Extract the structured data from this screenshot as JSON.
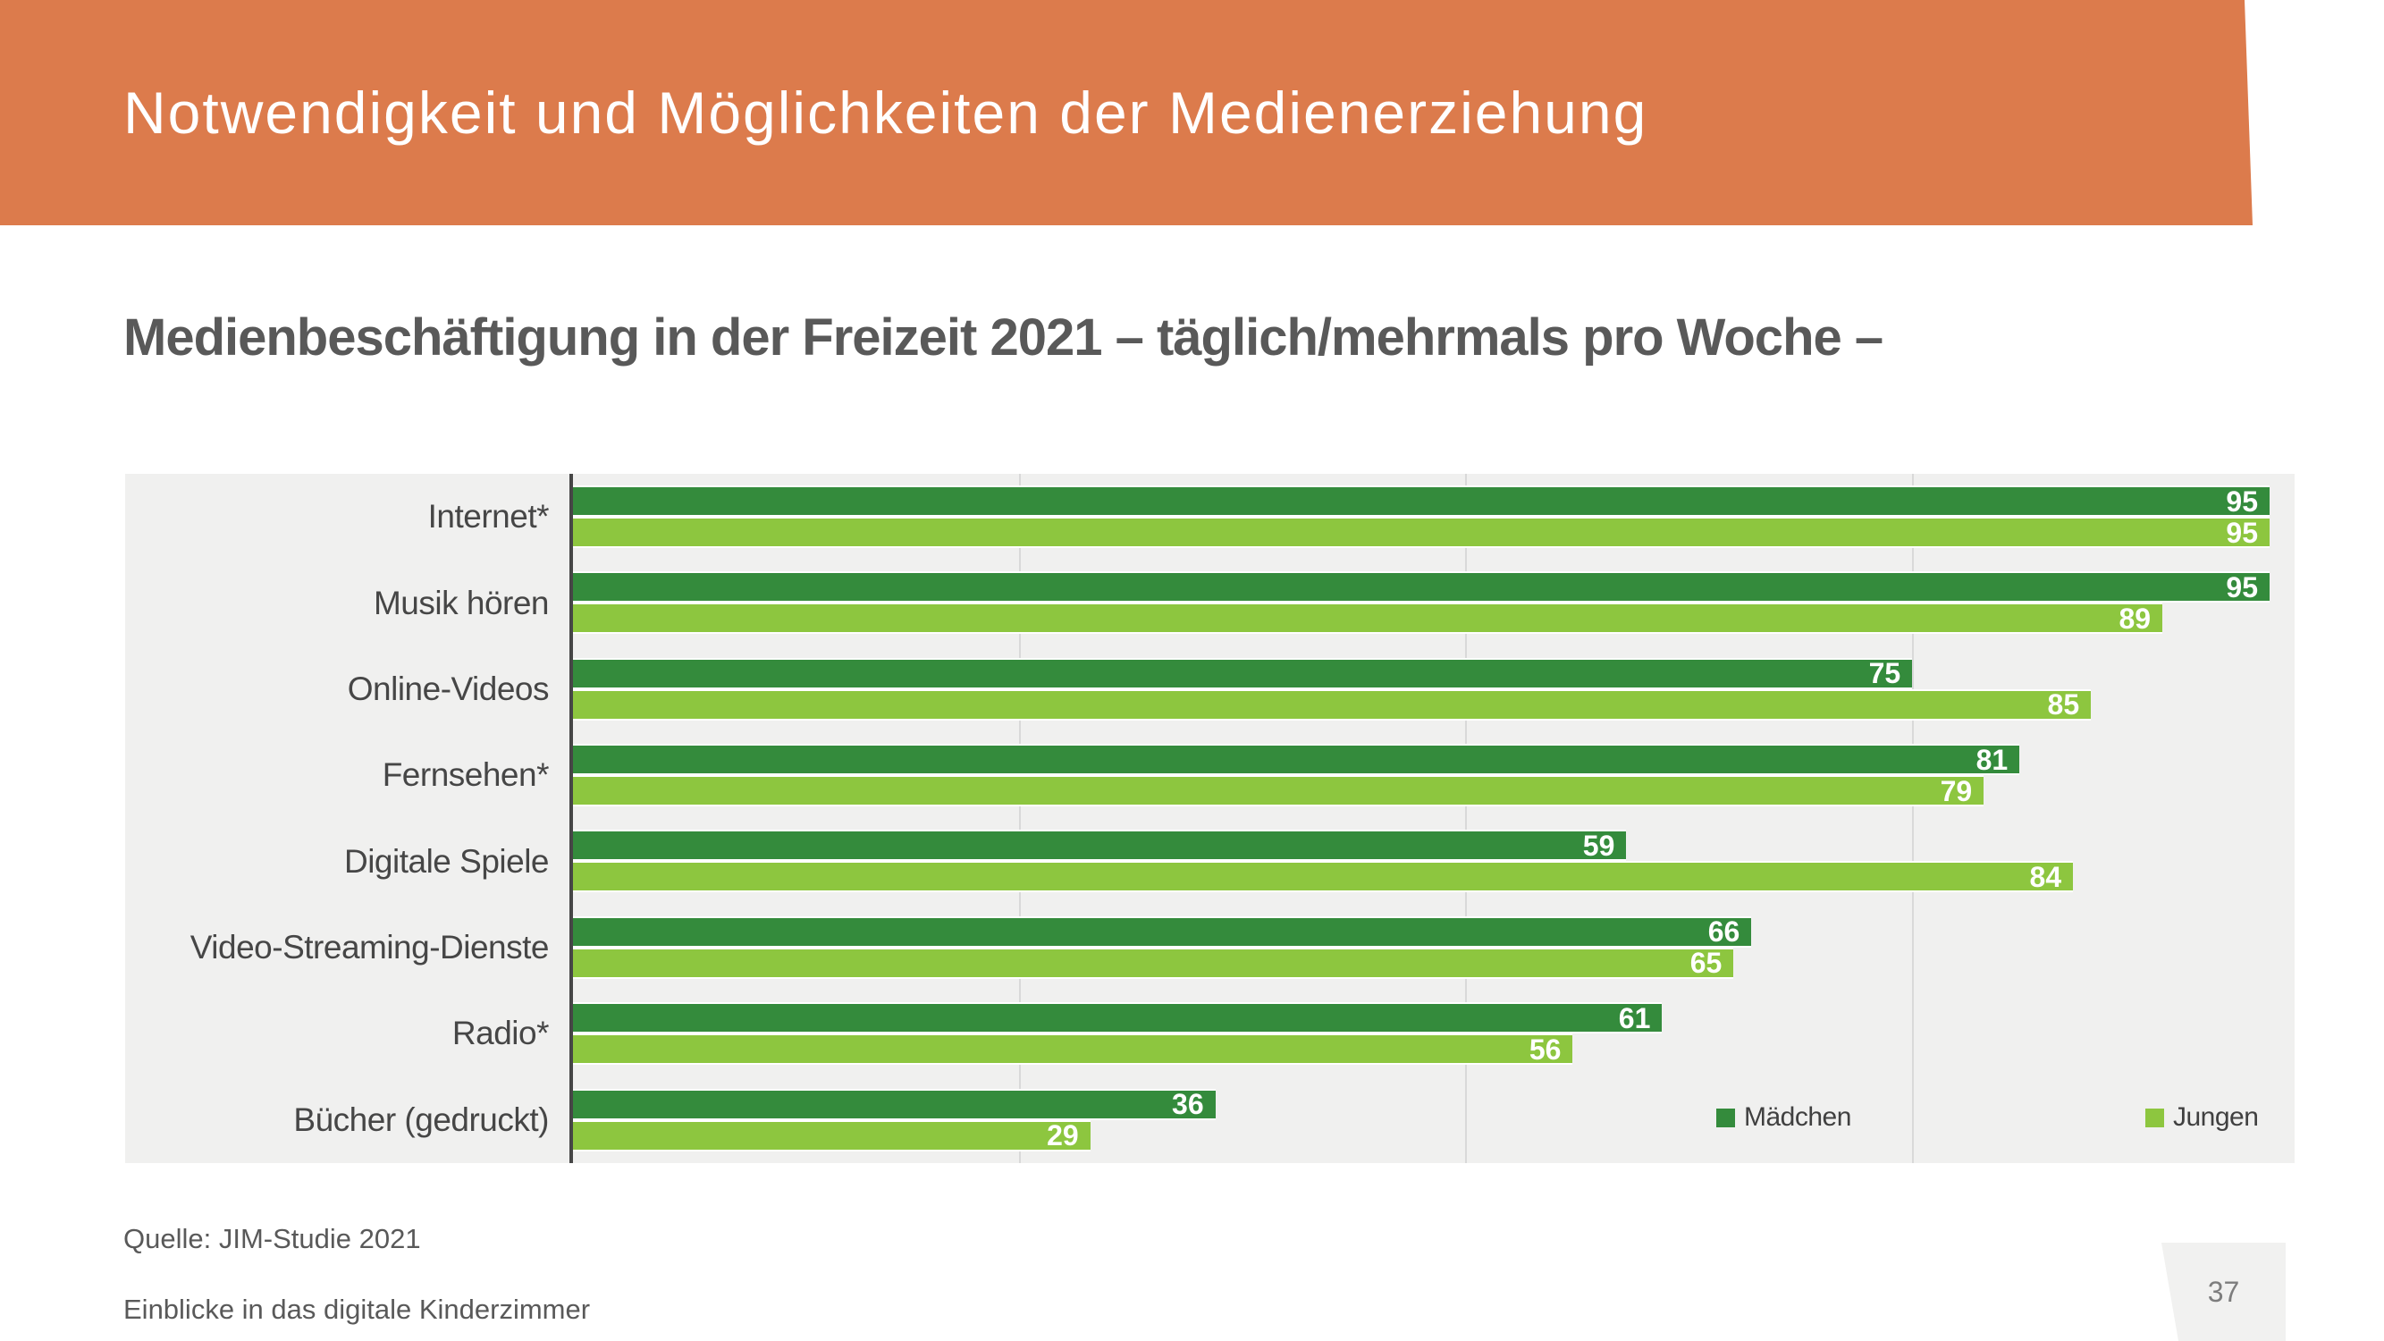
{
  "banner": {
    "title": "Notwendigkeit und Möglichkeiten der Medienerziehung",
    "bg_color": "#dc7b4c"
  },
  "subtitle": "Medienbeschäftigung in der Freizeit 2021 – täglich/mehrmals pro Woche –",
  "chart_data": {
    "type": "bar",
    "orientation": "horizontal",
    "title": "Medienbeschäftigung in der Freizeit 2021 – täglich/mehrmals pro Woche –",
    "categories": [
      "Internet*",
      "Musik hören",
      "Online-Videos",
      "Fernsehen*",
      "Digitale Spiele",
      "Video-Streaming-Dienste",
      "Radio*",
      "Bücher (gedruckt)"
    ],
    "series": [
      {
        "name": "Mädchen",
        "color": "#348b3c",
        "values": [
          95,
          95,
          75,
          81,
          59,
          66,
          61,
          36
        ]
      },
      {
        "name": "Jungen",
        "color": "#8dc63f",
        "values": [
          95,
          89,
          85,
          79,
          84,
          65,
          56,
          29
        ]
      }
    ],
    "xlabel": "",
    "ylabel": "",
    "xlim": [
      0,
      96.4
    ],
    "gridlines": [
      25,
      50,
      75
    ],
    "grid": true,
    "plot_bg_color": "#f0f0ef",
    "legend_position": "bottom-right",
    "value_labels": "inside-end-white"
  },
  "footer": {
    "source": "Quelle: JIM-Studie 2021",
    "deck_title": "Einblicke in das digitale Kinderzimmer",
    "page_number": "37"
  }
}
